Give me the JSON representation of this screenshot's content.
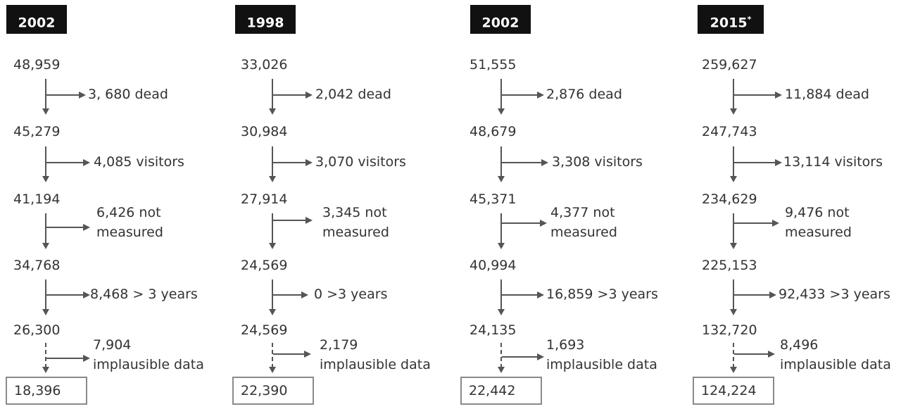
{
  "columns": [
    {
      "year": "2002",
      "year_mark": "",
      "counts": [
        "48,959",
        "45,279",
        "41,194",
        "34,768",
        "26,300"
      ],
      "exclusions": [
        {
          "line1": "3, 680 dead",
          "line2": ""
        },
        {
          "line1": "4,085 visitors",
          "line2": ""
        },
        {
          "line1": "6,426 not",
          "line2": "measured"
        },
        {
          "line1": "8,468 > 3 years",
          "line2": ""
        },
        {
          "line1": "7,904",
          "line2": "implausible data"
        }
      ],
      "final": "18,396"
    },
    {
      "year": "1998",
      "year_mark": "",
      "counts": [
        "33,026",
        "30,984",
        "27,914",
        "24,569",
        "24,569"
      ],
      "exclusions": [
        {
          "line1": "2,042 dead",
          "line2": ""
        },
        {
          "line1": "3,070 visitors",
          "line2": ""
        },
        {
          "line1": "3,345 not",
          "line2": "measured"
        },
        {
          "line1": "0 >3 years",
          "line2": ""
        },
        {
          "line1": "2,179",
          "line2": "implausible data"
        }
      ],
      "final": "22,390"
    },
    {
      "year": "2002",
      "year_mark": "",
      "counts": [
        "51,555",
        "48,679",
        "45,371",
        "40,994",
        "24,135"
      ],
      "exclusions": [
        {
          "line1": "2,876 dead",
          "line2": ""
        },
        {
          "line1": "3,308 visitors",
          "line2": ""
        },
        {
          "line1": "4,377 not",
          "line2": "measured"
        },
        {
          "line1": "16,859 >3 years",
          "line2": ""
        },
        {
          "line1": "1,693",
          "line2": "implausible data"
        }
      ],
      "final": "22,442"
    },
    {
      "year": "2015",
      "year_mark": "*",
      "counts": [
        "259,627",
        "247,743",
        "234,629",
        "225,153",
        "132,720"
      ],
      "exclusions": [
        {
          "line1": "11,884 dead",
          "line2": ""
        },
        {
          "line1": "13,114 visitors",
          "line2": ""
        },
        {
          "line1": "9,476 not",
          "line2": "measured"
        },
        {
          "line1": "92,433 >3 years",
          "line2": ""
        },
        {
          "line1": "8,496",
          "line2": "implausible data"
        }
      ],
      "final": "124,224"
    }
  ]
}
